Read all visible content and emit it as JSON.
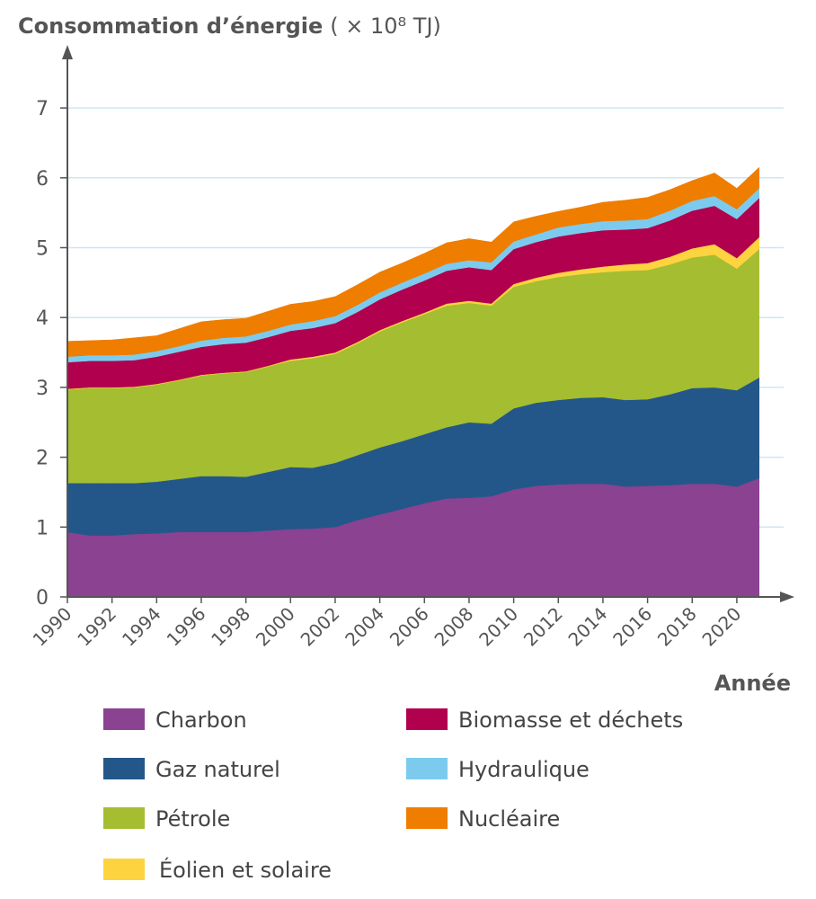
{
  "chart_data": {
    "type": "area",
    "stacked": true,
    "title": "Consommation d’énergie",
    "unit": "( × 10⁸ TJ)",
    "xlabel": "Année",
    "ylabel": "",
    "ylim": [
      0,
      7
    ],
    "yticks": [
      "0",
      "1",
      "2",
      "3",
      "4",
      "5",
      "6",
      "7"
    ],
    "xtick_labels": [
      "1990",
      "1992",
      "1994",
      "1996",
      "1998",
      "2000",
      "2002",
      "2004",
      "2006",
      "2008",
      "2010",
      "2012",
      "2014",
      "2016",
      "2018",
      "2020"
    ],
    "grid": true,
    "legend_position": "bottom",
    "x": [
      1990,
      1991,
      1992,
      1993,
      1994,
      1995,
      1996,
      1997,
      1998,
      1999,
      2000,
      2001,
      2002,
      2003,
      2004,
      2005,
      2006,
      2007,
      2008,
      2009,
      2010,
      2011,
      2012,
      2013,
      2014,
      2015,
      2016,
      2017,
      2018,
      2019,
      2020,
      2021
    ],
    "series": [
      {
        "name": "Charbon",
        "color": "#8b4291",
        "values": [
          0.93,
          0.88,
          0.88,
          0.9,
          0.91,
          0.93,
          0.93,
          0.93,
          0.93,
          0.95,
          0.97,
          0.98,
          1.0,
          1.1,
          1.18,
          1.26,
          1.34,
          1.41,
          1.42,
          1.44,
          1.54,
          1.59,
          1.61,
          1.62,
          1.62,
          1.58,
          1.59,
          1.6,
          1.62,
          1.62,
          1.58,
          1.7
        ]
      },
      {
        "name": "Gaz naturel",
        "color": "#23578a",
        "values": [
          0.7,
          0.75,
          0.75,
          0.73,
          0.74,
          0.76,
          0.8,
          0.8,
          0.79,
          0.84,
          0.89,
          0.87,
          0.92,
          0.93,
          0.96,
          0.97,
          0.99,
          1.02,
          1.08,
          1.04,
          1.16,
          1.19,
          1.21,
          1.23,
          1.24,
          1.24,
          1.24,
          1.3,
          1.37,
          1.38,
          1.38,
          1.44
        ]
      },
      {
        "name": "Pétrole",
        "color": "#a5bd30",
        "values": [
          1.34,
          1.36,
          1.36,
          1.37,
          1.39,
          1.41,
          1.44,
          1.47,
          1.5,
          1.51,
          1.52,
          1.57,
          1.56,
          1.6,
          1.66,
          1.7,
          1.72,
          1.74,
          1.71,
          1.69,
          1.74,
          1.74,
          1.76,
          1.77,
          1.79,
          1.85,
          1.85,
          1.86,
          1.87,
          1.9,
          1.74,
          1.84
        ]
      },
      {
        "name": "Éolien et solaire",
        "color": "#fdd33f",
        "values": [
          0.01,
          0.01,
          0.01,
          0.01,
          0.01,
          0.01,
          0.01,
          0.01,
          0.01,
          0.01,
          0.02,
          0.02,
          0.02,
          0.02,
          0.02,
          0.02,
          0.02,
          0.03,
          0.03,
          0.03,
          0.04,
          0.05,
          0.06,
          0.07,
          0.08,
          0.09,
          0.1,
          0.11,
          0.13,
          0.15,
          0.15,
          0.17
        ]
      },
      {
        "name": "Biomasse et déchets",
        "color": "#b0004e",
        "values": [
          0.38,
          0.38,
          0.38,
          0.38,
          0.39,
          0.4,
          0.4,
          0.41,
          0.41,
          0.41,
          0.41,
          0.41,
          0.42,
          0.43,
          0.44,
          0.45,
          0.46,
          0.47,
          0.48,
          0.48,
          0.5,
          0.51,
          0.52,
          0.52,
          0.52,
          0.5,
          0.5,
          0.52,
          0.54,
          0.55,
          0.56,
          0.56
        ]
      },
      {
        "name": "Hydraulique",
        "color": "#7ccbee",
        "values": [
          0.08,
          0.08,
          0.08,
          0.08,
          0.08,
          0.08,
          0.09,
          0.09,
          0.09,
          0.09,
          0.09,
          0.1,
          0.1,
          0.1,
          0.1,
          0.1,
          0.1,
          0.1,
          0.1,
          0.11,
          0.11,
          0.11,
          0.13,
          0.13,
          0.13,
          0.13,
          0.13,
          0.14,
          0.14,
          0.14,
          0.14,
          0.14
        ]
      },
      {
        "name": "Nucléaire",
        "color": "#ef7d00",
        "values": [
          0.22,
          0.21,
          0.22,
          0.24,
          0.22,
          0.25,
          0.27,
          0.26,
          0.26,
          0.28,
          0.29,
          0.28,
          0.28,
          0.29,
          0.29,
          0.28,
          0.29,
          0.3,
          0.31,
          0.29,
          0.28,
          0.26,
          0.23,
          0.24,
          0.27,
          0.29,
          0.31,
          0.3,
          0.29,
          0.33,
          0.3,
          0.3
        ]
      }
    ]
  },
  "colors": {
    "axis": "#555555",
    "grid": "#cfe6f2"
  }
}
